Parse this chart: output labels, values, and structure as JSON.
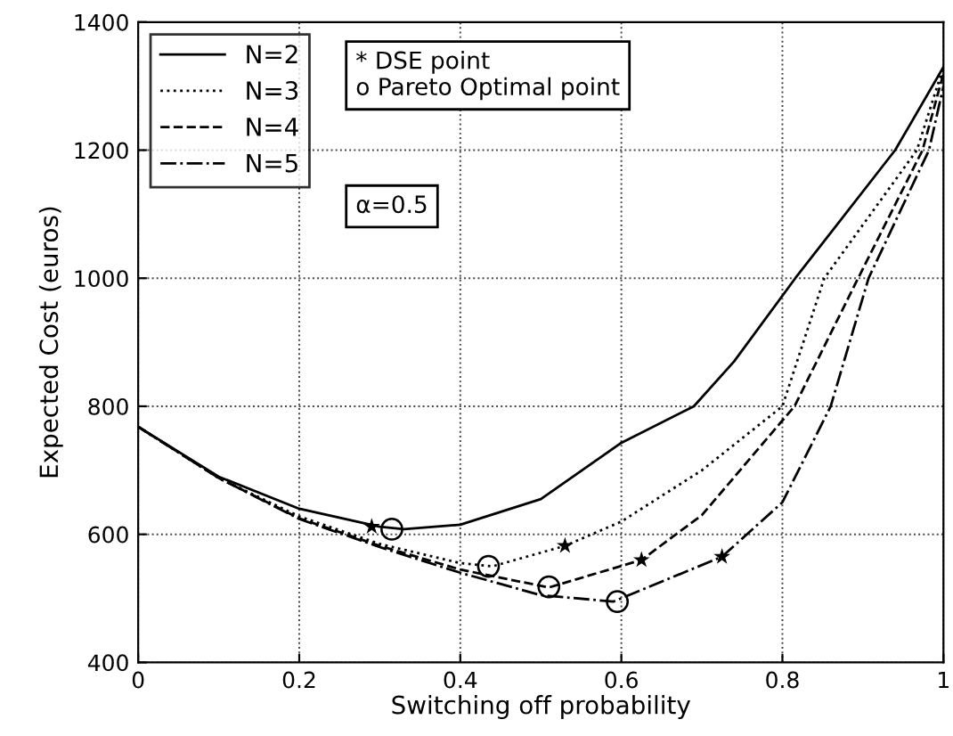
{
  "chart_data": {
    "type": "line",
    "xlabel": "Switching off probability",
    "ylabel": "Expected Cost (euros)",
    "xlim": [
      0,
      1
    ],
    "ylim": [
      400,
      1400
    ],
    "xticks": [
      0,
      0.2,
      0.4,
      0.6,
      0.8,
      1
    ],
    "yticks": [
      400,
      600,
      800,
      1000,
      1200,
      1400
    ],
    "grid": true,
    "legend": "top left",
    "annotations": [
      "* DSE point\no Pareto Optimal point",
      "α=0.5"
    ],
    "series": [
      {
        "name": "N=2",
        "color": "#000000",
        "line_style": "solid",
        "x": [
          0,
          0.1,
          0.2,
          0.3,
          0.33,
          0.4,
          0.5,
          0.6,
          0.69,
          0.74,
          0.816,
          0.94,
          1
        ],
        "values": [
          768,
          690,
          640,
          612,
          608,
          615,
          655,
          743,
          800,
          870,
          1000,
          1200,
          1330
        ]
      },
      {
        "name": "N=3",
        "color": "#000000",
        "line_style": "dotted",
        "x": [
          0,
          0.1,
          0.2,
          0.3,
          0.4,
          0.44,
          0.53,
          0.6,
          0.7,
          0.8,
          0.852,
          0.967,
          1
        ],
        "values": [
          768,
          688,
          628,
          585,
          555,
          550,
          582,
          620,
          700,
          800,
          1000,
          1200,
          1330
        ]
      },
      {
        "name": "N=4",
        "color": "#000000",
        "line_style": "dashed",
        "x": [
          0,
          0.1,
          0.2,
          0.3,
          0.4,
          0.51,
          0.625,
          0.7,
          0.815,
          0.894,
          0.974,
          1
        ],
        "values": [
          768,
          688,
          625,
          582,
          545,
          517,
          560,
          630,
          800,
          1000,
          1200,
          1320
        ]
      },
      {
        "name": "N=5",
        "color": "#000000",
        "line_style": "dashdot",
        "x": [
          0,
          0.1,
          0.2,
          0.3,
          0.4,
          0.5,
          0.59,
          0.725,
          0.8,
          0.86,
          0.907,
          0.982,
          1
        ],
        "values": [
          768,
          688,
          624,
          580,
          540,
          505,
          495,
          565,
          650,
          800,
          1000,
          1200,
          1300
        ]
      },
      {
        "type": "scatter",
        "marker": "star",
        "color": "#000000",
        "x": [
          0.29,
          0.53,
          0.625,
          0.725
        ],
        "values": [
          612,
          582,
          560,
          565
        ]
      },
      {
        "type": "scatter",
        "marker": "circle",
        "color": "#000000",
        "x": [
          0.315,
          0.435,
          0.51,
          0.595
        ],
        "values": [
          608,
          550,
          518,
          495
        ]
      }
    ]
  }
}
